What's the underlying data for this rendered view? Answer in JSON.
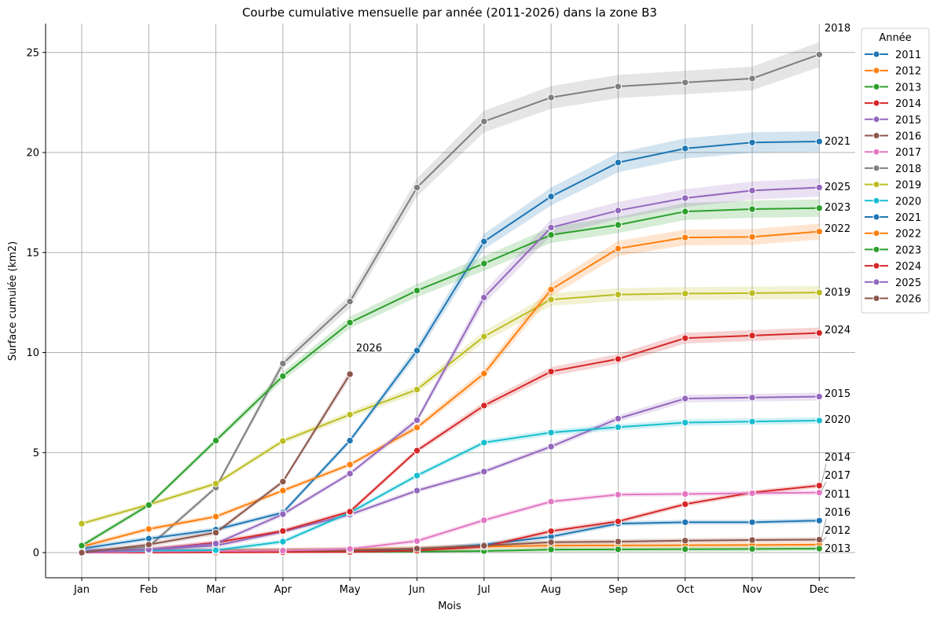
{
  "chart_data": {
    "type": "line",
    "title": "Courbe cumulative mensuelle par année (2011-2026) dans la zone B3",
    "xlabel": "Mois",
    "ylabel": "Surface cumulée (km2)",
    "categories": [
      "Jan",
      "Feb",
      "Mar",
      "Apr",
      "May",
      "Jun",
      "Jul",
      "Aug",
      "Sep",
      "Oct",
      "Nov",
      "Dec"
    ],
    "ylim": [
      -1.3,
      26.5
    ],
    "yticks": [
      0,
      5,
      10,
      15,
      20,
      25
    ],
    "grid": true,
    "confidence_band": true,
    "legend": {
      "title": "Année",
      "placement": "outside-top-right"
    },
    "series": [
      {
        "name": "2011",
        "color": "#1f77b4",
        "values": [
          0.05,
          0.05,
          0.08,
          0.1,
          0.1,
          0.15,
          0.4,
          0.8,
          1.45,
          1.52,
          1.52,
          1.6
        ],
        "end_label": "2011"
      },
      {
        "name": "2012",
        "color": "#ff7f0e",
        "values": [
          0.0,
          0.05,
          0.1,
          0.12,
          0.15,
          0.2,
          0.3,
          0.35,
          0.36,
          0.37,
          0.38,
          0.4
        ],
        "end_label": "2012"
      },
      {
        "name": "2013",
        "color": "#2ca02c",
        "values": [
          0.0,
          0.02,
          0.03,
          0.04,
          0.04,
          0.05,
          0.08,
          0.15,
          0.16,
          0.17,
          0.18,
          0.2
        ],
        "end_label": "2013"
      },
      {
        "name": "2014",
        "color": "#d62728",
        "values": [
          0.0,
          0.0,
          0.01,
          0.02,
          0.03,
          0.1,
          0.3,
          1.07,
          1.56,
          2.42,
          3.0,
          3.35
        ],
        "end_label": "2014"
      },
      {
        "name": "2015",
        "color": "#9467bd",
        "values": [
          0.1,
          0.15,
          0.35,
          1.05,
          1.9,
          3.1,
          4.05,
          5.3,
          6.7,
          7.7,
          7.75,
          7.8
        ],
        "end_label": "2015"
      },
      {
        "name": "2016",
        "color": "#8c564b",
        "values": [
          0.0,
          0.05,
          0.08,
          0.1,
          0.12,
          0.2,
          0.35,
          0.52,
          0.55,
          0.6,
          0.63,
          0.65
        ],
        "end_label": "2016"
      },
      {
        "name": "2017",
        "color": "#e377c2",
        "values": [
          0.0,
          0.05,
          0.08,
          0.1,
          0.18,
          0.58,
          1.62,
          2.55,
          2.9,
          2.93,
          2.97,
          3.0
        ],
        "end_label": "2017"
      },
      {
        "name": "2018",
        "color": "#7f7f7f",
        "values": [
          0.0,
          0.3,
          3.25,
          9.45,
          12.55,
          18.25,
          21.55,
          22.75,
          23.3,
          23.5,
          23.7,
          24.9
        ],
        "end_label": "2018"
      },
      {
        "name": "2019",
        "color": "#bcbd22",
        "values": [
          1.45,
          2.4,
          3.45,
          5.58,
          6.9,
          8.15,
          10.8,
          12.65,
          12.9,
          12.95,
          12.97,
          13.0
        ],
        "end_label": "2019"
      },
      {
        "name": "2020",
        "color": "#17becf",
        "values": [
          0.05,
          0.1,
          0.12,
          0.55,
          2.0,
          3.85,
          5.5,
          6.0,
          6.27,
          6.5,
          6.55,
          6.6
        ],
        "end_label": "2020"
      },
      {
        "name": "2021",
        "color": "#1f77b4",
        "values": [
          0.2,
          0.7,
          1.15,
          2.0,
          5.6,
          10.1,
          15.55,
          17.8,
          19.5,
          20.2,
          20.5,
          20.55
        ],
        "end_label": "2021"
      },
      {
        "name": "2022",
        "color": "#ff7f0e",
        "values": [
          0.3,
          1.18,
          1.8,
          3.1,
          4.4,
          6.25,
          8.95,
          13.15,
          15.2,
          15.75,
          15.78,
          16.05
        ],
        "end_label": "2022"
      },
      {
        "name": "2023",
        "color": "#2ca02c",
        "values": [
          0.35,
          2.38,
          5.6,
          8.82,
          11.5,
          13.1,
          14.45,
          15.88,
          16.38,
          17.05,
          17.17,
          17.22
        ],
        "end_label": "2023"
      },
      {
        "name": "2024",
        "color": "#d62728",
        "values": [
          0.02,
          0.15,
          0.5,
          1.08,
          2.05,
          5.1,
          7.35,
          9.05,
          9.68,
          10.72,
          10.85,
          10.98
        ],
        "end_label": "2024"
      },
      {
        "name": "2025",
        "color": "#9467bd",
        "values": [
          0.02,
          0.15,
          0.45,
          1.92,
          3.95,
          6.62,
          12.75,
          16.25,
          17.1,
          17.72,
          18.1,
          18.25
        ],
        "end_label": "2025"
      },
      {
        "name": "2026",
        "color": "#8c564b",
        "values": [
          0.0,
          0.4,
          1.0,
          3.55,
          8.92,
          null,
          null,
          null,
          null,
          null,
          null,
          null
        ],
        "end_label": "2026"
      }
    ]
  }
}
